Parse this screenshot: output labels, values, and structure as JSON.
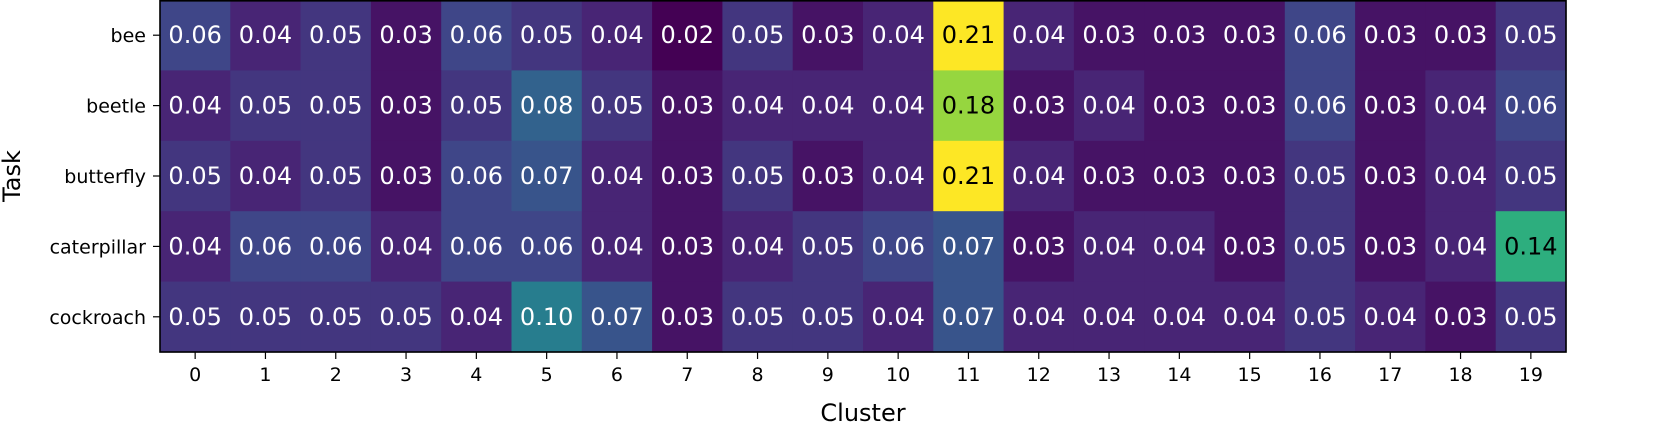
{
  "chart_data": {
    "type": "heatmap",
    "title": "",
    "xlabel": "Cluster",
    "ylabel": "Task",
    "x_categories": [
      "0",
      "1",
      "2",
      "3",
      "4",
      "5",
      "6",
      "7",
      "8",
      "9",
      "10",
      "11",
      "12",
      "13",
      "14",
      "15",
      "16",
      "17",
      "18",
      "19"
    ],
    "y_categories": [
      "bee",
      "beetle",
      "butterfly",
      "caterpillar",
      "cockroach"
    ],
    "values": [
      [
        "0.06",
        "0.04",
        "0.05",
        "0.03",
        "0.06",
        "0.05",
        "0.04",
        "0.02",
        "0.05",
        "0.03",
        "0.04",
        "0.21",
        "0.04",
        "0.03",
        "0.03",
        "0.03",
        "0.06",
        "0.03",
        "0.03",
        "0.05"
      ],
      [
        "0.04",
        "0.05",
        "0.05",
        "0.03",
        "0.05",
        "0.08",
        "0.05",
        "0.03",
        "0.04",
        "0.04",
        "0.04",
        "0.18",
        "0.03",
        "0.04",
        "0.03",
        "0.03",
        "0.06",
        "0.03",
        "0.04",
        "0.06"
      ],
      [
        "0.05",
        "0.04",
        "0.05",
        "0.03",
        "0.06",
        "0.07",
        "0.04",
        "0.03",
        "0.05",
        "0.03",
        "0.04",
        "0.21",
        "0.04",
        "0.03",
        "0.03",
        "0.03",
        "0.05",
        "0.03",
        "0.04",
        "0.05"
      ],
      [
        "0.04",
        "0.06",
        "0.06",
        "0.04",
        "0.06",
        "0.06",
        "0.04",
        "0.03",
        "0.04",
        "0.05",
        "0.06",
        "0.07",
        "0.03",
        "0.04",
        "0.04",
        "0.03",
        "0.05",
        "0.03",
        "0.04",
        "0.14"
      ],
      [
        "0.05",
        "0.05",
        "0.05",
        "0.05",
        "0.04",
        "0.10",
        "0.07",
        "0.03",
        "0.05",
        "0.05",
        "0.04",
        "0.07",
        "0.04",
        "0.04",
        "0.04",
        "0.04",
        "0.05",
        "0.04",
        "0.03",
        "0.05"
      ]
    ],
    "color_range": [
      0.02,
      0.21
    ],
    "colormap": "viridis",
    "grid": false,
    "legend": "none"
  }
}
